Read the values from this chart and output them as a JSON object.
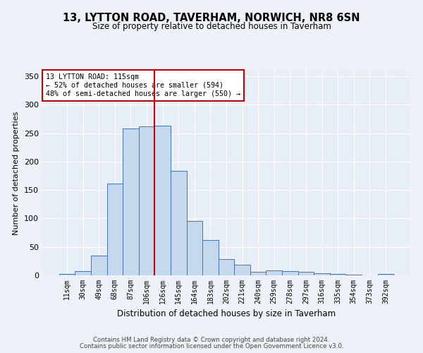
{
  "title": "13, LYTTON ROAD, TAVERHAM, NORWICH, NR8 6SN",
  "subtitle": "Size of property relative to detached houses in Taverham",
  "xlabel": "Distribution of detached houses by size in Taverham",
  "ylabel": "Number of detached properties",
  "categories": [
    "11sqm",
    "30sqm",
    "49sqm",
    "68sqm",
    "87sqm",
    "106sqm",
    "126sqm",
    "145sqm",
    "164sqm",
    "183sqm",
    "202sqm",
    "221sqm",
    "240sqm",
    "259sqm",
    "278sqm",
    "297sqm",
    "316sqm",
    "335sqm",
    "354sqm",
    "373sqm",
    "392sqm"
  ],
  "values": [
    2,
    8,
    35,
    162,
    258,
    262,
    263,
    184,
    96,
    62,
    28,
    19,
    6,
    9,
    7,
    6,
    4,
    2,
    1,
    0,
    3
  ],
  "bar_color": "#c5d8ed",
  "bar_edge_color": "#4472c4",
  "vline_x": 5.5,
  "vline_color": "#cc0000",
  "annotation_text": "13 LYTTON ROAD: 115sqm\n← 52% of detached houses are smaller (594)\n48% of semi-detached houses are larger (550) →",
  "annotation_box_color": "#ffffff",
  "annotation_box_edge": "#cc0000",
  "footer1": "Contains HM Land Registry data © Crown copyright and database right 2024.",
  "footer2": "Contains public sector information licensed under the Open Government Licence v3.0.",
  "bg_color": "#eef2f8",
  "plot_bg_color": "#e8eef6",
  "grid_color": "#ffffff",
  "ylim": [
    0,
    360
  ],
  "yticks": [
    0,
    50,
    100,
    150,
    200,
    250,
    300,
    350
  ],
  "title_fontsize": 10.5,
  "subtitle_fontsize": 8.5
}
